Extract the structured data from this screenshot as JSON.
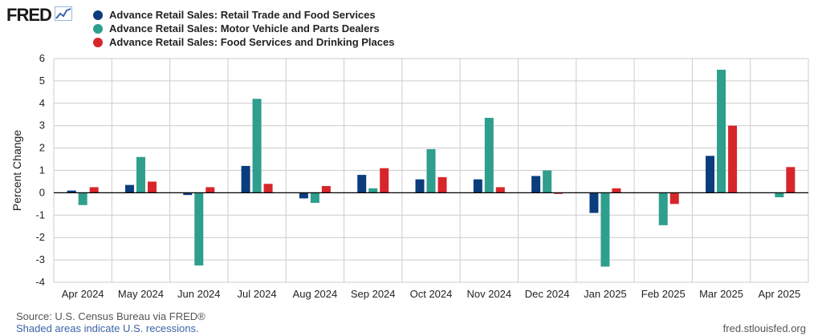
{
  "header": {
    "logo_text": "FRED",
    "logo_icon": "line-chart-icon"
  },
  "colors": {
    "retail": "#0b3c7d",
    "motor": "#2e9e8d",
    "food": "#d7262b",
    "grid": "#cccccc",
    "zero_line": "#000000"
  },
  "chart_data": {
    "type": "bar",
    "title": "",
    "xlabel": "",
    "ylabel": "Percent Change",
    "ylim": [
      -4,
      6
    ],
    "yticks": [
      -4,
      -3,
      -2,
      -1,
      0,
      1,
      2,
      3,
      4,
      5,
      6
    ],
    "grid": true,
    "legend_position": "top-left",
    "categories": [
      "Apr 2024",
      "May 2024",
      "Jun 2024",
      "Jul 2024",
      "Aug 2024",
      "Sep 2024",
      "Oct 2024",
      "Nov 2024",
      "Dec 2024",
      "Jan 2025",
      "Feb 2025",
      "Mar 2025",
      "Apr 2025"
    ],
    "series": [
      {
        "name": "Advance Retail Sales: Retail Trade and Food Services",
        "color": "#0b3c7d",
        "values": [
          0.1,
          0.35,
          -0.1,
          1.2,
          -0.25,
          0.8,
          0.6,
          0.6,
          0.75,
          -0.9,
          null,
          1.65,
          null
        ]
      },
      {
        "name": "Advance Retail Sales: Motor Vehicle and Parts Dealers",
        "color": "#2e9e8d",
        "values": [
          -0.55,
          1.6,
          -3.25,
          4.2,
          -0.45,
          0.2,
          1.95,
          3.35,
          1.0,
          -3.3,
          -1.45,
          5.5,
          -0.2
        ]
      },
      {
        "name": "Advance Retail Sales: Food Services and Drinking Places",
        "color": "#d7262b",
        "values": [
          0.25,
          0.5,
          0.25,
          0.4,
          0.3,
          1.1,
          0.7,
          0.25,
          -0.05,
          0.2,
          -0.5,
          3.0,
          1.15
        ]
      }
    ]
  },
  "footer": {
    "source": "Source: U.S. Census Bureau via FRED®",
    "recession_note": "Shaded areas indicate U.S. recessions.",
    "site": "fred.stlouisfed.org"
  }
}
